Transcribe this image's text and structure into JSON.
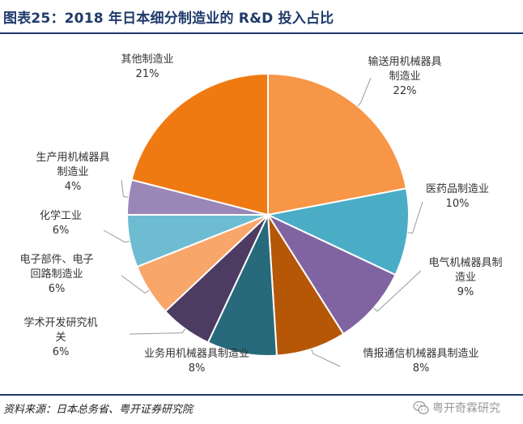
{
  "title": "图表25：2018 年日本细分制造业的 R&D 投入占比",
  "source": "资料来源：日本总务省、粤开证券研究院",
  "watermark": "粤开奇霖研究",
  "watermark_icon": "wechat-icon",
  "chart_data": {
    "type": "pie",
    "start": "12 o'clock, clockwise",
    "slices": [
      {
        "label": [
          "输送用机械器具",
          "制造业"
        ],
        "value": 22,
        "pct": "22%",
        "color": "#F79646"
      },
      {
        "label": [
          "医药品制造业"
        ],
        "value": 10,
        "pct": "10%",
        "color": "#4BACC6"
      },
      {
        "label": [
          "电气机械器具制",
          "造业"
        ],
        "value": 9,
        "pct": "9%",
        "color": "#8064A2"
      },
      {
        "label": [
          "情报通信机械器具制造业"
        ],
        "value": 8,
        "pct": "8%",
        "color": "#B65708"
      },
      {
        "label": [
          "业务用机械器具制造业"
        ],
        "value": 8,
        "pct": "8%",
        "color": "#276A7C"
      },
      {
        "label": [
          "学术开发研究机",
          "关"
        ],
        "value": 6,
        "pct": "6%",
        "color": "#4D3B62"
      },
      {
        "label": [
          "电子部件、电子",
          "回路制造业"
        ],
        "value": 6,
        "pct": "6%",
        "color": "#F9A66A"
      },
      {
        "label": [
          "化学工业"
        ],
        "value": 6,
        "pct": "6%",
        "color": "#6DBCD2"
      },
      {
        "label": [
          "生产用机械器具",
          "制造业"
        ],
        "value": 4,
        "pct": "4%",
        "color": "#9A87B8"
      },
      {
        "label": [
          "其他制造业"
        ],
        "value": 21,
        "pct": "21%",
        "color": "#F07A12"
      }
    ]
  }
}
